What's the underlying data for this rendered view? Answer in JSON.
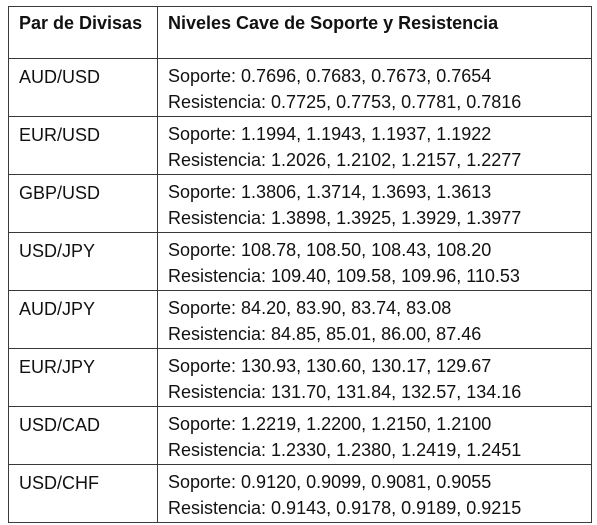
{
  "header": {
    "pair_label": "Par de Divisas",
    "levels_label": "Niveles Cave de Soporte y Resistencia"
  },
  "rows": [
    {
      "pair": "AUD/USD",
      "support": "Soporte: 0.7696, 0.7683, 0.7673, 0.7654",
      "resistance": "Resistencia: 0.7725, 0.7753, 0.7781, 0.7816"
    },
    {
      "pair": "EUR/USD",
      "support": "Soporte: 1.1994, 1.1943, 1.1937, 1.1922",
      "resistance": "Resistencia: 1.2026, 1.2102, 1.2157, 1.2277"
    },
    {
      "pair": "GBP/USD",
      "support": "Soporte: 1.3806, 1.3714, 1.3693, 1.3613",
      "resistance": "Resistencia: 1.3898, 1.3925, 1.3929, 1.3977"
    },
    {
      "pair": "USD/JPY",
      "support": "Soporte: 108.78, 108.50, 108.43, 108.20",
      "resistance": "Resistencia: 109.40, 109.58, 109.96, 110.53"
    },
    {
      "pair": "AUD/JPY",
      "support": "Soporte: 84.20, 83.90, 83.74, 83.08",
      "resistance": "Resistencia: 84.85, 85.01, 86.00, 87.46"
    },
    {
      "pair": "EUR/JPY",
      "support": "Soporte: 130.93, 130.60, 130.17, 129.67",
      "resistance": "Resistencia: 131.70, 131.84, 132.57, 134.16"
    },
    {
      "pair": "USD/CAD",
      "support": "Soporte: 1.2219, 1.2200, 1.2150, 1.2100",
      "resistance": "Resistencia: 1.2330, 1.2380, 1.2419, 1.2451"
    },
    {
      "pair": "USD/CHF",
      "support": "Soporte: 0.9120, 0.9099, 0.9081, 0.9055",
      "resistance": "Resistencia: 0.9143, 0.9178, 0.9189, 0.9215"
    }
  ]
}
